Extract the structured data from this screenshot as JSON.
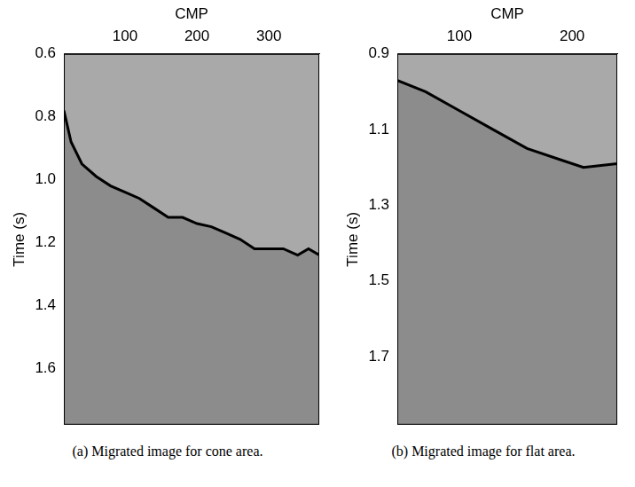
{
  "chart_data": [
    {
      "type": "line",
      "caption": "(a) Migrated image for cone area.",
      "x_label": "CMP",
      "y_label": "Time (s)",
      "x": [
        15,
        25,
        40,
        60,
        80,
        100,
        120,
        140,
        160,
        180,
        200,
        220,
        240,
        260,
        280,
        300,
        320,
        340,
        355,
        370
      ],
      "values": [
        0.78,
        0.88,
        0.95,
        0.99,
        1.02,
        1.04,
        1.06,
        1.09,
        1.12,
        1.12,
        1.14,
        1.15,
        1.17,
        1.19,
        1.22,
        1.22,
        1.22,
        1.24,
        1.22,
        1.24
      ],
      "color": "#000000",
      "xlim": [
        15,
        370
      ],
      "xticks": [
        100,
        200,
        300
      ],
      "ylim": [
        0.6,
        1.78
      ],
      "yticks": [
        0.6,
        0.8,
        {
          "value": 1,
          "label": "1.0"
        },
        1.2,
        1.4,
        1.6
      ],
      "grid": false
    },
    {
      "type": "line",
      "caption": "(b) Migrated image for flat area.",
      "x_label": "CMP",
      "y_label": "Time (s)",
      "x": [
        45,
        70,
        100,
        130,
        160,
        190,
        210,
        240
      ],
      "values": [
        0.97,
        1.0,
        1.05,
        1.1,
        1.15,
        1.18,
        1.2,
        1.19
      ],
      "color": "#000000",
      "xlim": [
        45,
        240
      ],
      "xticks": [
        100,
        200
      ],
      "ylim": [
        0.9,
        1.88
      ],
      "yticks": [
        0.9,
        1.1,
        1.3,
        1.5,
        1.7
      ],
      "grid": false
    }
  ]
}
